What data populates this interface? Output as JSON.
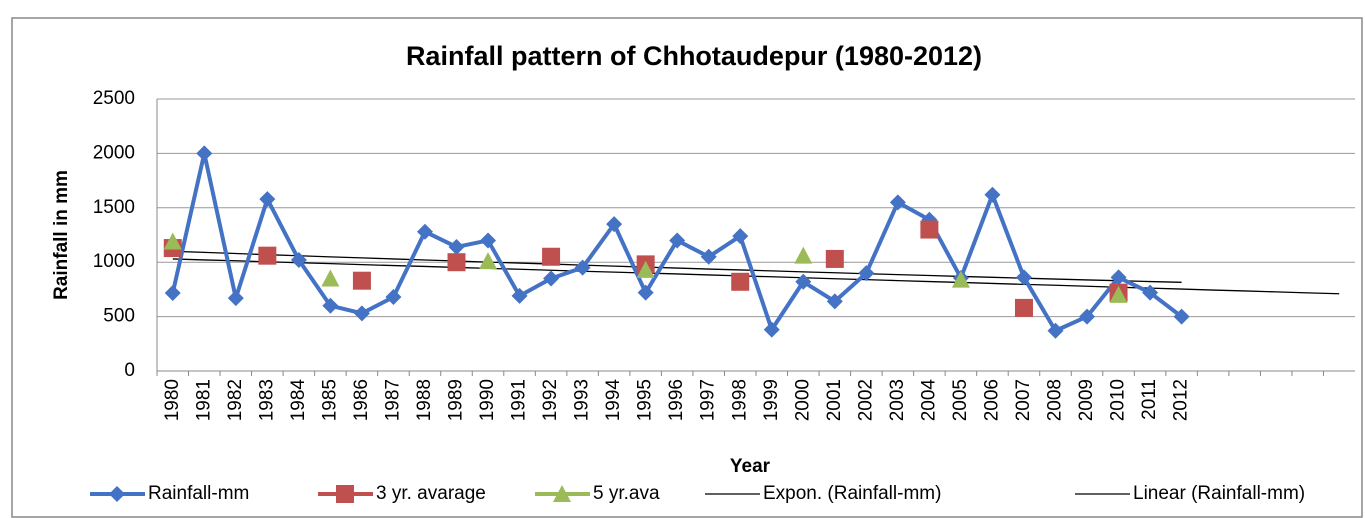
{
  "chart_data": {
    "type": "line",
    "title": "Rainfall pattern of Chhotaudepur (1980-2012)",
    "x_label": "Year",
    "y_label": "Rainfall in mm",
    "categories": [
      "1980",
      "1981",
      "1982",
      "1983",
      "1984",
      "1985",
      "1986",
      "1987",
      "1988",
      "1989",
      "1990",
      "1991",
      "1992",
      "1993",
      "1994",
      "1995",
      "1996",
      "1997",
      "1998",
      "1999",
      "2000",
      "2001",
      "2002",
      "2003",
      "2004",
      "2005",
      "2006",
      "2007",
      "2008",
      "2009",
      "2010",
      "2011",
      "2012",
      null,
      null,
      null,
      null,
      null
    ],
    "ylim": [
      0,
      2500
    ],
    "yticks": [
      0,
      500,
      1000,
      1500,
      2000,
      2500
    ],
    "grid": true,
    "legend": "bottom",
    "series": [
      {
        "name": "Rainfall-mm",
        "color": "#4472c4",
        "marker": "diamond",
        "line": true,
        "values": [
          717,
          2000,
          670,
          1580,
          1020,
          600,
          530,
          680,
          1280,
          1140,
          1200,
          690,
          850,
          950,
          1350,
          720,
          1200,
          1050,
          1240,
          380,
          820,
          640,
          900,
          1550,
          1390,
          855,
          1620,
          860,
          370,
          500,
          860,
          720,
          500,
          null,
          null,
          null,
          null,
          null
        ]
      },
      {
        "name": "3 yr. avarage",
        "color": "#c0504d",
        "marker": "square",
        "line": false,
        "values": [
          1130,
          null,
          null,
          1060,
          null,
          null,
          830,
          null,
          null,
          1000,
          null,
          null,
          1050,
          null,
          null,
          980,
          null,
          null,
          820,
          null,
          null,
          1030,
          null,
          null,
          1300,
          null,
          null,
          580,
          null,
          null,
          720,
          null,
          null,
          null,
          null,
          null,
          null,
          null
        ]
      },
      {
        "name": "5 yr.ava",
        "color": "#9bbb59",
        "marker": "triangle",
        "line": false,
        "values": [
          1190,
          null,
          null,
          null,
          null,
          850,
          null,
          null,
          null,
          null,
          1010,
          null,
          null,
          null,
          null,
          930,
          null,
          null,
          null,
          null,
          1060,
          null,
          null,
          null,
          null,
          840,
          null,
          null,
          null,
          null,
          700,
          null,
          null,
          null,
          null,
          null,
          null,
          null
        ]
      },
      {
        "name": "Expon. (Rainfall-mm)",
        "color": "#000000",
        "marker": "none",
        "line": true,
        "values": [
          1100,
          1090,
          1080,
          1069,
          1059,
          1049,
          1040,
          1030,
          1020,
          1011,
          1001,
          992,
          983,
          973,
          964,
          955,
          946,
          937,
          929,
          920,
          911,
          903,
          894,
          886,
          878,
          869,
          861,
          853,
          845,
          837,
          830,
          822,
          815,
          null,
          null,
          null,
          null,
          null
        ]
      },
      {
        "name": "Linear (Rainfall-mm)",
        "color": "#000000",
        "marker": "none",
        "line": true,
        "values": [
          1030,
          1021,
          1013,
          1004,
          995,
          987,
          978,
          969,
          961,
          952,
          943,
          935,
          926,
          917,
          909,
          900,
          892,
          883,
          874,
          866,
          857,
          848,
          840,
          831,
          822,
          814,
          805,
          796,
          788,
          779,
          770,
          762,
          753,
          744,
          736,
          727,
          718,
          710
        ]
      }
    ]
  }
}
